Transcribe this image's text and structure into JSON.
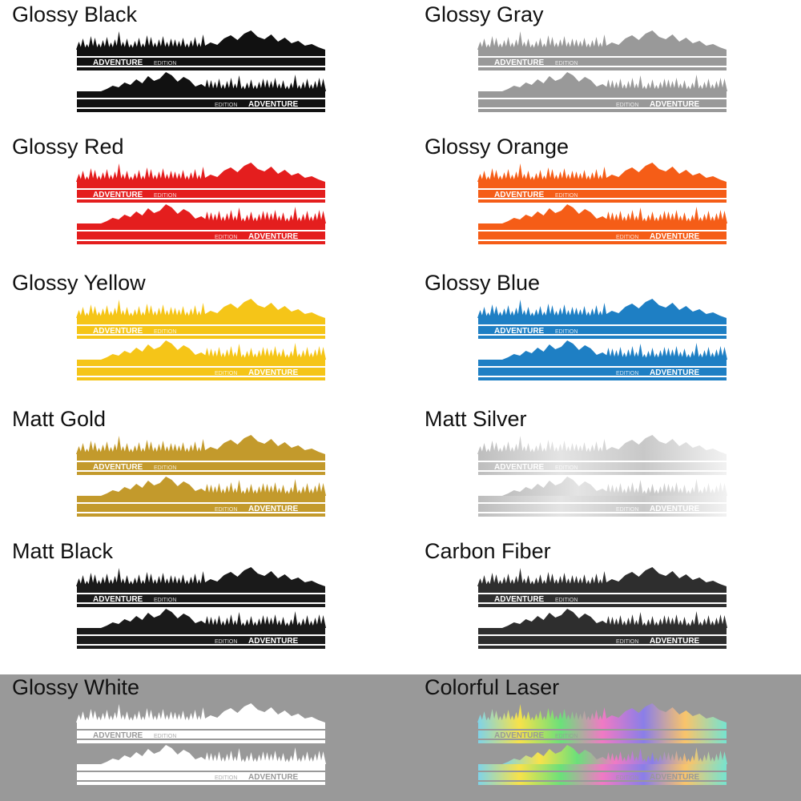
{
  "decal": {
    "word_main": "ADVENTURE",
    "word_small": "EDITION"
  },
  "items": [
    {
      "label": "Glossy Black",
      "color": "#111111"
    },
    {
      "label": "Glossy Gray",
      "color": "#999999"
    },
    {
      "label": "Glossy Red",
      "color": "#e41e1e"
    },
    {
      "label": "Glossy Orange",
      "color": "#f55d17"
    },
    {
      "label": "Glossy Yellow",
      "color": "#f5c518"
    },
    {
      "label": "Glossy Blue",
      "color": "#1e7fc4"
    },
    {
      "label": "Matt Gold",
      "color": "#c39a2c"
    },
    {
      "label": "Matt Silver",
      "color": [
        "#bdbdbd",
        "#e4e4e4",
        "#c8c8c8",
        "#f2f2f2"
      ]
    },
    {
      "label": "Matt Black",
      "color": "#1a1a1a"
    },
    {
      "label": "Carbon Fiber",
      "color": "#2e2e2e"
    },
    {
      "label": "Glossy White",
      "color": "#ffffff",
      "background": "#999999"
    },
    {
      "label": "Colorful Laser",
      "color": [
        "#7fd3e8",
        "#f7e24a",
        "#6be07a",
        "#f07ac4",
        "#8a7ee8",
        "#f9c46b",
        "#76e3d0"
      ],
      "background": "#999999"
    }
  ]
}
